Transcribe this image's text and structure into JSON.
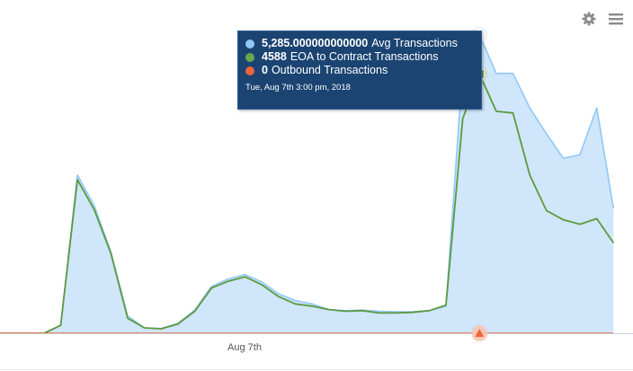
{
  "chart_data": {
    "type": "area",
    "x_tick_labels": [
      "Aug 7th"
    ],
    "series": [
      {
        "name": "Avg Transactions",
        "color": "#90c8f8",
        "fill": "#cfe6fb",
        "values": [
          0,
          0,
          0,
          0,
          140,
          2800,
          2260,
          1440,
          305,
          95,
          85,
          175,
          410,
          830,
          960,
          1040,
          910,
          700,
          580,
          520,
          420,
          400,
          410,
          390,
          380,
          380,
          400,
          480,
          4700,
          5285,
          4600,
          4600,
          3990,
          3530,
          3100,
          3160,
          3990,
          2210
        ]
      },
      {
        "name": "EOA to Contract Transactions",
        "color": "#5d9a3f",
        "values": [
          0,
          0,
          0,
          0,
          140,
          2720,
          2190,
          1410,
          265,
          95,
          80,
          165,
          390,
          800,
          920,
          1000,
          860,
          650,
          520,
          480,
          420,
          390,
          400,
          360,
          360,
          370,
          400,
          500,
          3800,
          4588,
          3930,
          3900,
          2800,
          2170,
          2010,
          1930,
          2030,
          1600
        ]
      },
      {
        "name": "Outbound Transactions",
        "color": "#f0653a",
        "values": [
          0,
          0,
          0,
          0,
          0,
          0,
          0,
          0,
          0,
          0,
          0,
          0,
          0,
          0,
          0,
          0,
          0,
          0,
          0,
          0,
          0,
          0,
          0,
          0,
          0,
          0,
          0,
          0,
          0,
          0,
          0,
          0,
          0,
          0,
          0,
          0,
          0,
          0
        ]
      }
    ],
    "ylim": [
      0,
      5900
    ],
    "highlight_index": 29,
    "grid": false,
    "legend": "none"
  },
  "tooltip": {
    "rows": [
      {
        "value": "5,285.000000000000",
        "label": "Avg Transactions",
        "color": "#8ec8f6"
      },
      {
        "value": "4588",
        "label": "EOA to Contract Transactions",
        "color": "#6aa84f"
      },
      {
        "value": "0",
        "label": "Outbound Transactions",
        "color": "#f0653a"
      }
    ],
    "date": "Tue, Aug 7th 3:00 pm, 2018"
  },
  "toolbar": {
    "settings_icon": "gear-icon",
    "menu_icon": "hamburger-menu-icon"
  }
}
